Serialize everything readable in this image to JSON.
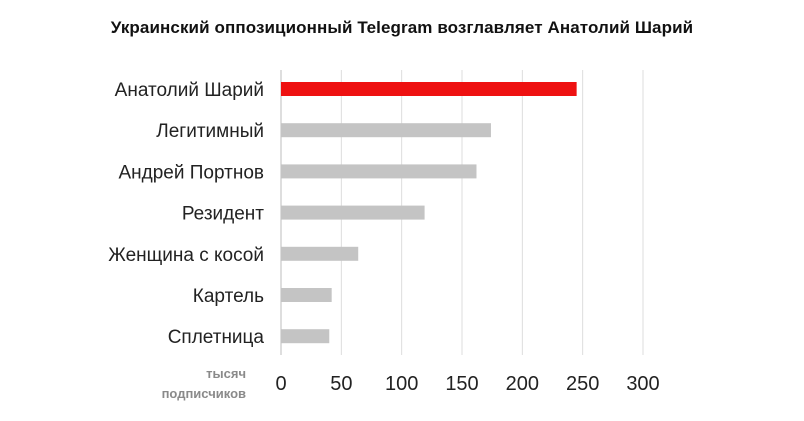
{
  "chart_data": {
    "type": "bar",
    "orientation": "horizontal",
    "title": "Украинский оппозиционный Telegram возглавляет Анатолий Шарий",
    "xlabel": "тысяч подписчиков",
    "xlabel_lines": [
      "тысяч",
      "подписчиков"
    ],
    "ylabel": "",
    "categories": [
      "Анатолий Шарий",
      "Легитимный",
      "Андрей Портнов",
      "Резидент",
      "Женщина с косой",
      "Картель",
      "Сплетница"
    ],
    "values": [
      245,
      174,
      162,
      119,
      64,
      42,
      40
    ],
    "bar_colors": [
      "#ee1111",
      "#c4c4c4",
      "#c4c4c4",
      "#c4c4c4",
      "#c4c4c4",
      "#c4c4c4",
      "#c4c4c4"
    ],
    "xlim": [
      0,
      300
    ],
    "xticks": [
      0,
      50,
      100,
      150,
      200,
      250,
      300
    ],
    "tick_labels": [
      "0",
      "50",
      "100",
      "150",
      "200",
      "250",
      "300"
    ],
    "grid": "vertical",
    "legend": "none"
  }
}
